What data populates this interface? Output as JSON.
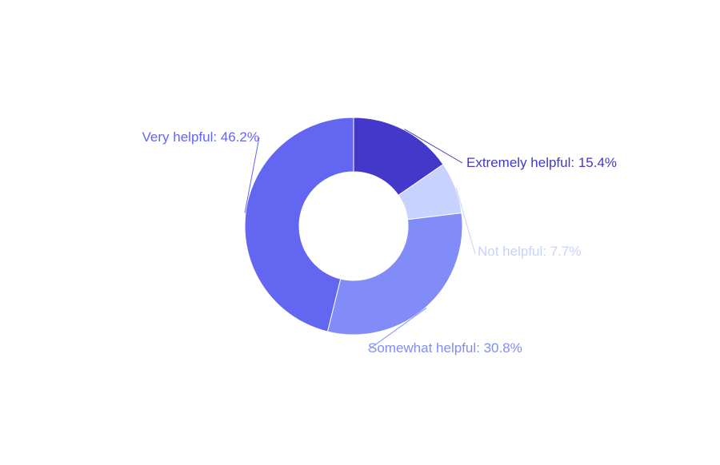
{
  "chart_data": {
    "type": "pie",
    "hole": 0.5,
    "direction": "clockwise",
    "start_angle_deg": 90,
    "slices": [
      {
        "label": "Extremely helpful",
        "value": 15.4,
        "display": "Extremely helpful: 15.4%",
        "color": "#4338ca"
      },
      {
        "label": "Not helpful",
        "value": 7.7,
        "display": "Not helpful: 7.7%",
        "color": "#c7d2fe"
      },
      {
        "label": "Somewhat helpful",
        "value": 30.8,
        "display": "Somewhat helpful: 30.8%",
        "color": "#818cf8"
      },
      {
        "label": "Very helpful",
        "value": 46.2,
        "display": "Very helpful: 46.2%",
        "color": "#6366f1"
      }
    ]
  }
}
